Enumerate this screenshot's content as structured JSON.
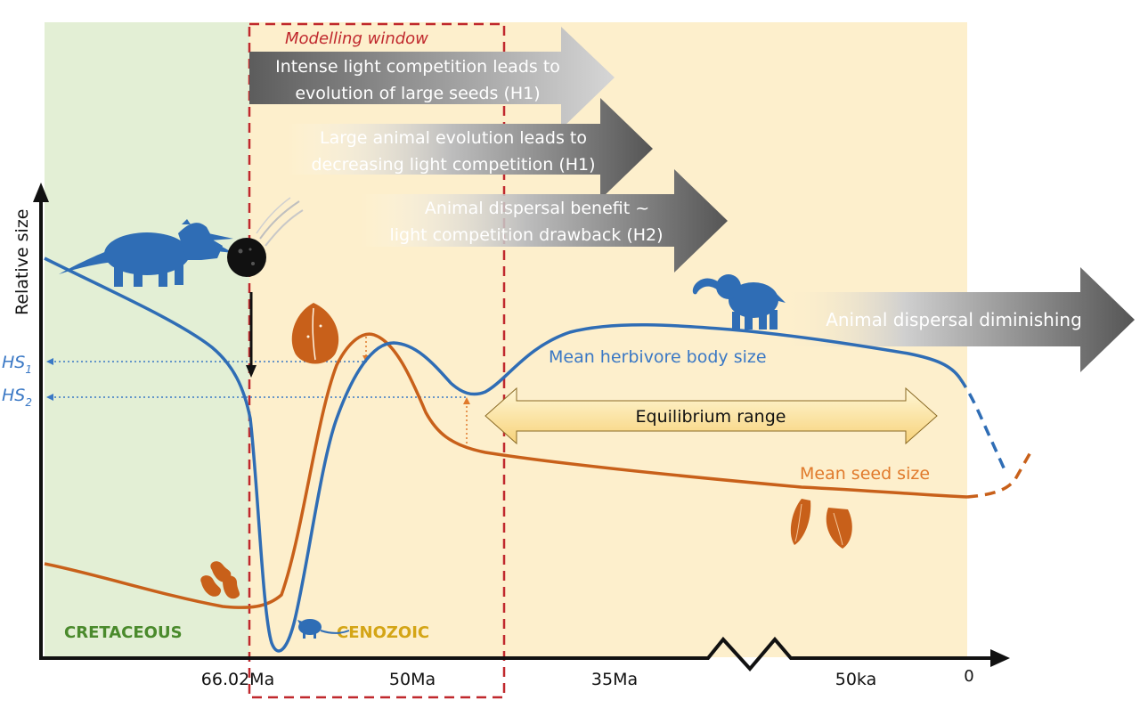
{
  "y_axis_label": "Relative size",
  "x_ticks": [
    "66.02Ma",
    "50Ma",
    "35Ma",
    "50ka",
    "0"
  ],
  "eras": {
    "cretaceous": "CRETACEOUS",
    "cenozoic": "CENOZOIC"
  },
  "modelling_window": "Modelling window",
  "arrows": {
    "h1_seeds": [
      "Intense light competition leads to",
      "evolution of large seeds (H1)"
    ],
    "h1_animals": [
      "Large animal evolution leads to",
      "decreasing light competition (H1)"
    ],
    "h2": [
      "Animal dispersal benefit ~",
      "light competition drawback (H2)"
    ],
    "dispersal": "Animal dispersal diminishing"
  },
  "equilibrium_label": "Equilibrium range",
  "series_labels": {
    "herbivore": "Mean herbivore body size",
    "seed": "Mean seed size"
  },
  "hs_labels": {
    "hs1_main": "HS",
    "hs1_sub": "1",
    "hs2_main": "HS",
    "hs2_sub": "2"
  },
  "icons": [
    "triceratops-icon",
    "meteor-icon",
    "acorn-seed-icon",
    "small-seeds-icon",
    "shrew-icon",
    "elephant-icon",
    "almond-seeds-icon"
  ],
  "colors": {
    "herbivore": "#2f6db5",
    "seed": "#c8601a",
    "cretaceous_bg": "#e3efd5",
    "cenozoic_bg": "#fdefcc",
    "window": "#c0282d",
    "axis": "#111111",
    "cretaceous_text": "#4a8a2c",
    "cenozoic_text": "#d4a516"
  }
}
